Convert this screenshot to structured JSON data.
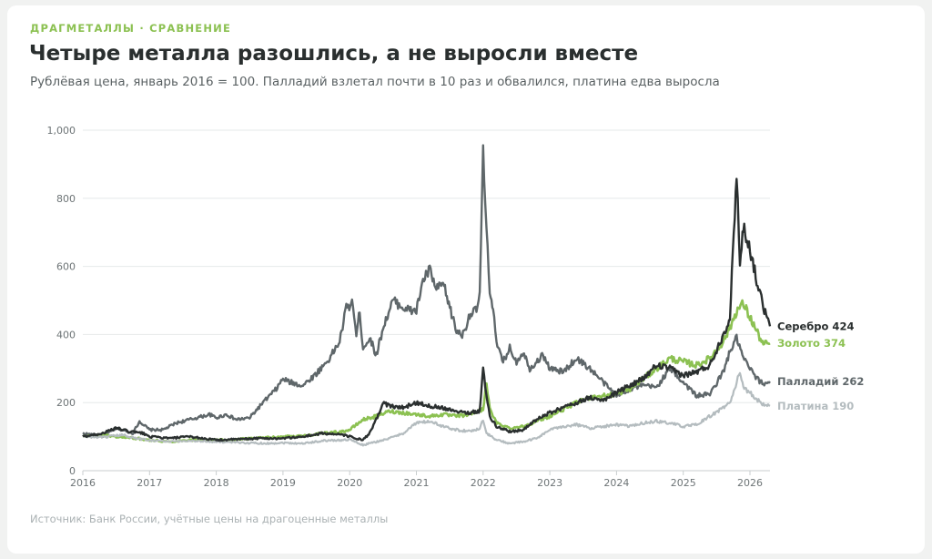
{
  "header": {
    "kicker": "ДРАГМЕТАЛЛЫ · СРАВНЕНИЕ",
    "title": "Четыре металла разошлись, а не выросли вместе",
    "subtitle": "Рублёвая цена, январь 2016 = 100. Палладий взлетал почти в 10 раз и обвалился, платина едва выросла"
  },
  "footer": {
    "source": "Источник: Банк России, учётные цены на драгоценные металлы"
  },
  "chart_data": {
    "type": "line",
    "x_tick_labels": [
      "2016",
      "2017",
      "2018",
      "2019",
      "2020",
      "2021",
      "2022",
      "2023",
      "2024",
      "2025",
      "2026"
    ],
    "y_tick_labels": [
      "0",
      "200",
      "400",
      "600",
      "800",
      "1,000"
    ],
    "ylim": [
      0,
      1000
    ],
    "xlim": [
      2016.0,
      2026.3
    ],
    "grid": "horizontal",
    "legend": "direct labels at line ends",
    "series": [
      {
        "name": "Палладий",
        "end_label": "Палладий 262",
        "color": "#5f676a",
        "points": [
          [
            2016.0,
            110
          ],
          [
            2016.3,
            100
          ],
          [
            2016.5,
            125
          ],
          [
            2016.75,
            110
          ],
          [
            2016.85,
            145
          ],
          [
            2017.0,
            120
          ],
          [
            2017.2,
            120
          ],
          [
            2017.4,
            140
          ],
          [
            2017.6,
            150
          ],
          [
            2017.9,
            165
          ],
          [
            2018.0,
            155
          ],
          [
            2018.15,
            165
          ],
          [
            2018.3,
            150
          ],
          [
            2018.5,
            155
          ],
          [
            2018.7,
            200
          ],
          [
            2018.9,
            240
          ],
          [
            2019.0,
            270
          ],
          [
            2019.1,
            260
          ],
          [
            2019.3,
            250
          ],
          [
            2019.5,
            285
          ],
          [
            2019.7,
            330
          ],
          [
            2019.85,
            380
          ],
          [
            2019.95,
            480
          ],
          [
            2020.05,
            490
          ],
          [
            2020.1,
            395
          ],
          [
            2020.15,
            470
          ],
          [
            2020.2,
            360
          ],
          [
            2020.3,
            390
          ],
          [
            2020.4,
            340
          ],
          [
            2020.5,
            420
          ],
          [
            2020.65,
            500
          ],
          [
            2020.8,
            480
          ],
          [
            2020.9,
            470
          ],
          [
            2021.0,
            470
          ],
          [
            2021.1,
            560
          ],
          [
            2021.2,
            590
          ],
          [
            2021.3,
            530
          ],
          [
            2021.4,
            550
          ],
          [
            2021.5,
            480
          ],
          [
            2021.6,
            410
          ],
          [
            2021.7,
            400
          ],
          [
            2021.8,
            460
          ],
          [
            2021.9,
            470
          ],
          [
            2021.95,
            520
          ],
          [
            2022.0,
            935
          ],
          [
            2022.05,
            700
          ],
          [
            2022.1,
            530
          ],
          [
            2022.15,
            480
          ],
          [
            2022.2,
            370
          ],
          [
            2022.3,
            320
          ],
          [
            2022.4,
            360
          ],
          [
            2022.5,
            320
          ],
          [
            2022.6,
            350
          ],
          [
            2022.7,
            300
          ],
          [
            2022.8,
            320
          ],
          [
            2022.9,
            340
          ],
          [
            2023.0,
            300
          ],
          [
            2023.2,
            290
          ],
          [
            2023.4,
            330
          ],
          [
            2023.6,
            300
          ],
          [
            2023.8,
            260
          ],
          [
            2024.0,
            220
          ],
          [
            2024.2,
            240
          ],
          [
            2024.4,
            250
          ],
          [
            2024.6,
            245
          ],
          [
            2024.8,
            300
          ],
          [
            2025.0,
            260
          ],
          [
            2025.2,
            220
          ],
          [
            2025.4,
            225
          ],
          [
            2025.6,
            290
          ],
          [
            2025.7,
            350
          ],
          [
            2025.8,
            390
          ],
          [
            2025.9,
            330
          ],
          [
            2026.0,
            300
          ],
          [
            2026.1,
            270
          ],
          [
            2026.2,
            255
          ],
          [
            2026.3,
            262
          ]
        ]
      },
      {
        "name": "Золото",
        "end_label": "Золото 374",
        "color": "#8cc152",
        "points": [
          [
            2016.0,
            100
          ],
          [
            2016.3,
            105
          ],
          [
            2016.5,
            100
          ],
          [
            2016.8,
            95
          ],
          [
            2017.0,
            90
          ],
          [
            2017.3,
            85
          ],
          [
            2017.6,
            90
          ],
          [
            2018.0,
            90
          ],
          [
            2018.3,
            92
          ],
          [
            2018.6,
            95
          ],
          [
            2019.0,
            100
          ],
          [
            2019.3,
            102
          ],
          [
            2019.6,
            110
          ],
          [
            2019.9,
            115
          ],
          [
            2020.0,
            120
          ],
          [
            2020.2,
            150
          ],
          [
            2020.4,
            160
          ],
          [
            2020.6,
            175
          ],
          [
            2020.8,
            170
          ],
          [
            2021.0,
            165
          ],
          [
            2021.2,
            160
          ],
          [
            2021.4,
            165
          ],
          [
            2021.6,
            160
          ],
          [
            2021.8,
            165
          ],
          [
            2022.0,
            180
          ],
          [
            2022.05,
            260
          ],
          [
            2022.1,
            180
          ],
          [
            2022.2,
            140
          ],
          [
            2022.4,
            125
          ],
          [
            2022.6,
            130
          ],
          [
            2022.8,
            145
          ],
          [
            2023.0,
            160
          ],
          [
            2023.2,
            180
          ],
          [
            2023.4,
            200
          ],
          [
            2023.6,
            215
          ],
          [
            2023.8,
            220
          ],
          [
            2024.0,
            225
          ],
          [
            2024.2,
            240
          ],
          [
            2024.4,
            270
          ],
          [
            2024.6,
            300
          ],
          [
            2024.8,
            330
          ],
          [
            2025.0,
            320
          ],
          [
            2025.2,
            310
          ],
          [
            2025.4,
            330
          ],
          [
            2025.6,
            380
          ],
          [
            2025.7,
            420
          ],
          [
            2025.8,
            470
          ],
          [
            2025.9,
            490
          ],
          [
            2026.0,
            450
          ],
          [
            2026.1,
            410
          ],
          [
            2026.2,
            370
          ],
          [
            2026.3,
            374
          ]
        ]
      },
      {
        "name": "Платина",
        "end_label": "Платина 190",
        "color": "#b4bcbf",
        "points": [
          [
            2016.0,
            100
          ],
          [
            2016.3,
            98
          ],
          [
            2016.6,
            105
          ],
          [
            2016.8,
            95
          ],
          [
            2017.0,
            90
          ],
          [
            2017.3,
            85
          ],
          [
            2017.6,
            88
          ],
          [
            2018.0,
            85
          ],
          [
            2018.4,
            82
          ],
          [
            2018.8,
            80
          ],
          [
            2019.0,
            82
          ],
          [
            2019.3,
            80
          ],
          [
            2019.6,
            88
          ],
          [
            2019.9,
            90
          ],
          [
            2020.0,
            92
          ],
          [
            2020.2,
            75
          ],
          [
            2020.4,
            85
          ],
          [
            2020.6,
            95
          ],
          [
            2020.8,
            110
          ],
          [
            2021.0,
            140
          ],
          [
            2021.2,
            145
          ],
          [
            2021.4,
            130
          ],
          [
            2021.6,
            120
          ],
          [
            2021.8,
            115
          ],
          [
            2021.95,
            125
          ],
          [
            2022.0,
            150
          ],
          [
            2022.05,
            110
          ],
          [
            2022.2,
            90
          ],
          [
            2022.4,
            80
          ],
          [
            2022.6,
            85
          ],
          [
            2022.8,
            95
          ],
          [
            2023.0,
            120
          ],
          [
            2023.2,
            130
          ],
          [
            2023.4,
            135
          ],
          [
            2023.6,
            125
          ],
          [
            2023.8,
            130
          ],
          [
            2024.0,
            135
          ],
          [
            2024.2,
            130
          ],
          [
            2024.4,
            140
          ],
          [
            2024.6,
            145
          ],
          [
            2024.8,
            140
          ],
          [
            2025.0,
            130
          ],
          [
            2025.2,
            135
          ],
          [
            2025.4,
            160
          ],
          [
            2025.6,
            185
          ],
          [
            2025.7,
            200
          ],
          [
            2025.8,
            260
          ],
          [
            2025.85,
            290
          ],
          [
            2025.9,
            240
          ],
          [
            2026.0,
            230
          ],
          [
            2026.1,
            210
          ],
          [
            2026.2,
            195
          ],
          [
            2026.3,
            190
          ]
        ]
      },
      {
        "name": "Серебро",
        "end_label": "Серебро 424",
        "color": "#2a2f2f",
        "points": [
          [
            2016.0,
            100
          ],
          [
            2016.3,
            110
          ],
          [
            2016.5,
            125
          ],
          [
            2016.7,
            115
          ],
          [
            2016.9,
            110
          ],
          [
            2017.0,
            100
          ],
          [
            2017.3,
            95
          ],
          [
            2017.6,
            100
          ],
          [
            2018.0,
            90
          ],
          [
            2018.3,
            92
          ],
          [
            2018.6,
            95
          ],
          [
            2019.0,
            95
          ],
          [
            2019.3,
            100
          ],
          [
            2019.6,
            110
          ],
          [
            2019.9,
            105
          ],
          [
            2020.0,
            100
          ],
          [
            2020.2,
            90
          ],
          [
            2020.3,
            110
          ],
          [
            2020.4,
            150
          ],
          [
            2020.5,
            200
          ],
          [
            2020.6,
            190
          ],
          [
            2020.8,
            185
          ],
          [
            2021.0,
            200
          ],
          [
            2021.2,
            190
          ],
          [
            2021.4,
            185
          ],
          [
            2021.6,
            175
          ],
          [
            2021.8,
            170
          ],
          [
            2021.95,
            175
          ],
          [
            2022.0,
            300
          ],
          [
            2022.05,
            220
          ],
          [
            2022.1,
            160
          ],
          [
            2022.2,
            130
          ],
          [
            2022.4,
            115
          ],
          [
            2022.6,
            120
          ],
          [
            2022.8,
            150
          ],
          [
            2023.0,
            170
          ],
          [
            2023.2,
            185
          ],
          [
            2023.4,
            200
          ],
          [
            2023.6,
            215
          ],
          [
            2023.8,
            205
          ],
          [
            2024.0,
            230
          ],
          [
            2024.2,
            250
          ],
          [
            2024.4,
            270
          ],
          [
            2024.6,
            310
          ],
          [
            2024.8,
            300
          ],
          [
            2025.0,
            280
          ],
          [
            2025.2,
            290
          ],
          [
            2025.4,
            310
          ],
          [
            2025.6,
            400
          ],
          [
            2025.7,
            450
          ],
          [
            2025.8,
            880
          ],
          [
            2025.85,
            600
          ],
          [
            2025.9,
            720
          ],
          [
            2026.0,
            650
          ],
          [
            2026.1,
            560
          ],
          [
            2026.2,
            480
          ],
          [
            2026.3,
            424
          ]
        ]
      }
    ]
  }
}
